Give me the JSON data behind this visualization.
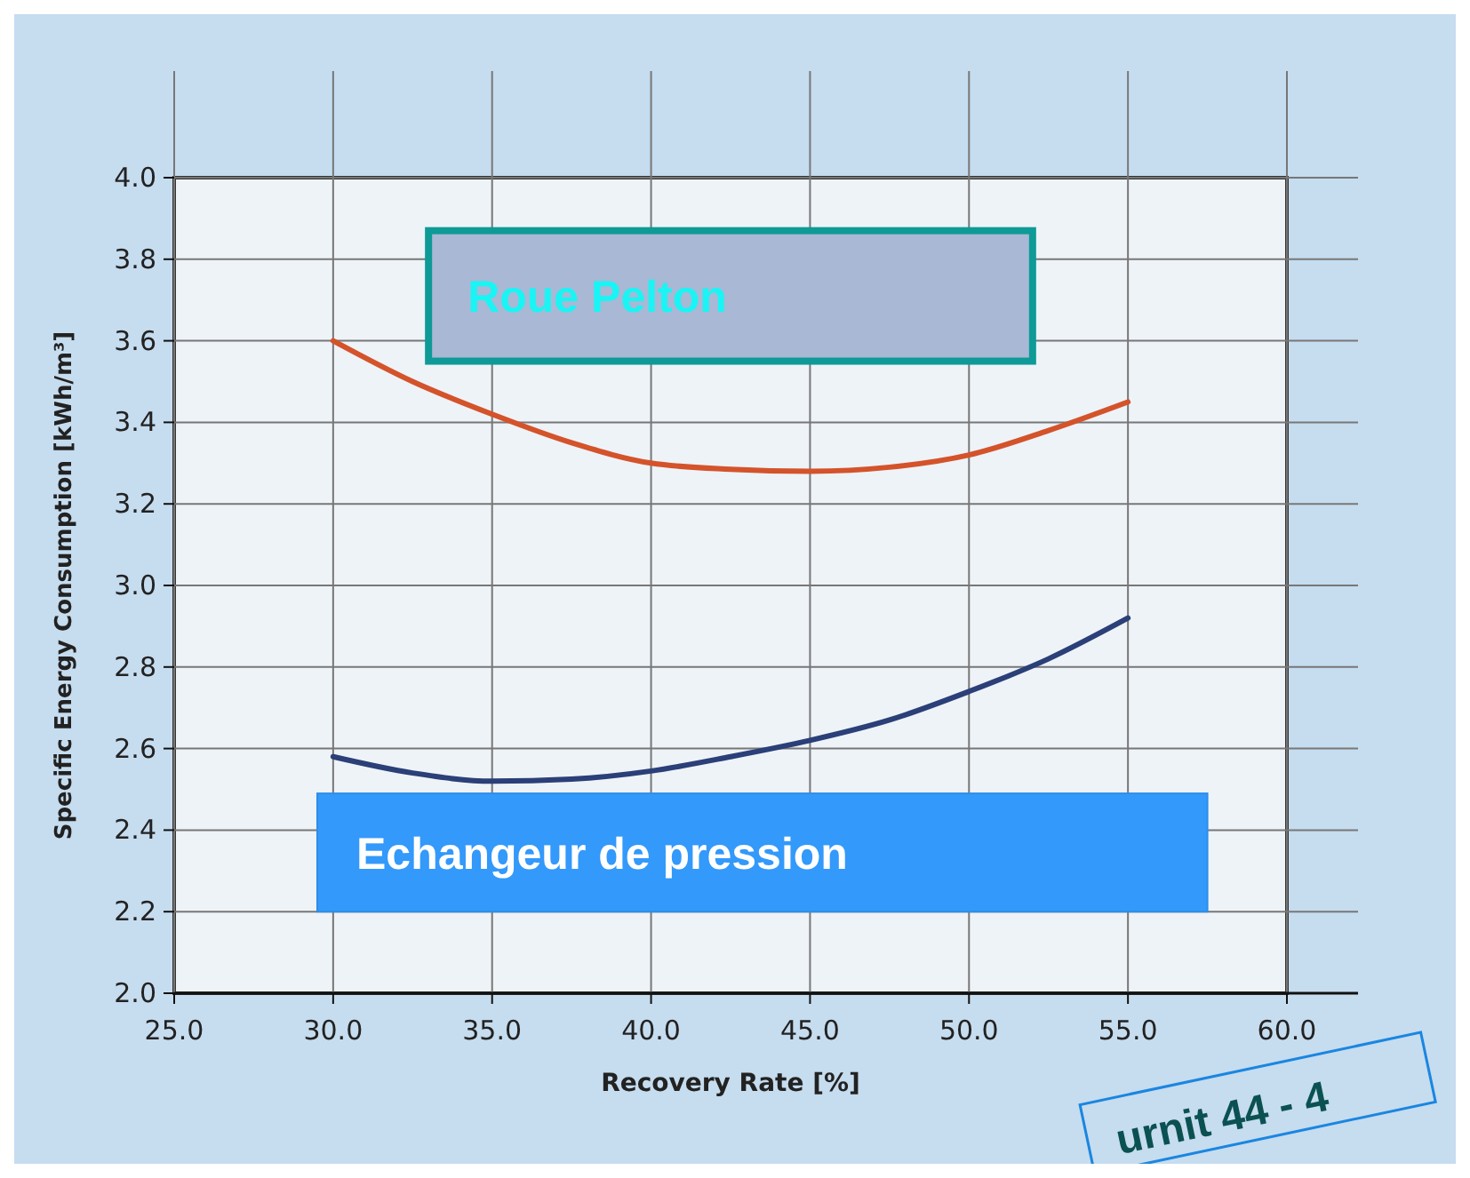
{
  "chart_data": {
    "type": "line",
    "xlabel": "Recovery Rate [%]",
    "ylabel": "Specific Energy Consumption [kWh/m³]",
    "x": [
      30,
      32.5,
      35,
      37.5,
      40,
      42.5,
      45,
      47.5,
      50,
      52.5,
      55
    ],
    "series": [
      {
        "name": "Roue Pelton",
        "color": "#d4532a",
        "values": [
          3.6,
          3.5,
          3.42,
          3.35,
          3.3,
          3.285,
          3.28,
          3.29,
          3.32,
          3.38,
          3.45
        ]
      },
      {
        "name": "Echangeur de pression",
        "color": "#2b3f78",
        "values": [
          2.58,
          2.54,
          2.52,
          2.525,
          2.545,
          2.58,
          2.62,
          2.67,
          2.74,
          2.82,
          2.92
        ]
      }
    ],
    "xlim": [
      25,
      60
    ],
    "ylim": [
      2.0,
      4.0
    ],
    "xticks": [
      {
        "value": 25,
        "label": "25.0"
      },
      {
        "value": 30,
        "label": "30.0"
      },
      {
        "value": 35,
        "label": "35.0"
      },
      {
        "value": 40,
        "label": "40.0"
      },
      {
        "value": 45,
        "label": "45.0"
      },
      {
        "value": 50,
        "label": "50.0"
      },
      {
        "value": 55,
        "label": "55.0"
      },
      {
        "value": 60,
        "label": "60.0"
      }
    ],
    "yticks": [
      {
        "value": 2.0,
        "label": "2.0"
      },
      {
        "value": 2.2,
        "label": "2.2"
      },
      {
        "value": 2.4,
        "label": "2.4"
      },
      {
        "value": 2.6,
        "label": "2.6"
      },
      {
        "value": 2.8,
        "label": "2.8"
      },
      {
        "value": 3.0,
        "label": "3.0"
      },
      {
        "value": 3.2,
        "label": "3.2"
      },
      {
        "value": 3.4,
        "label": "3.4"
      },
      {
        "value": 3.6,
        "label": "3.6"
      },
      {
        "value": 3.8,
        "label": "3.8"
      },
      {
        "value": 4.0,
        "label": "4.0"
      }
    ],
    "grid": true,
    "marker": "none",
    "line_style": "solid",
    "annotations": [
      "urnit 44 - 4"
    ]
  }
}
